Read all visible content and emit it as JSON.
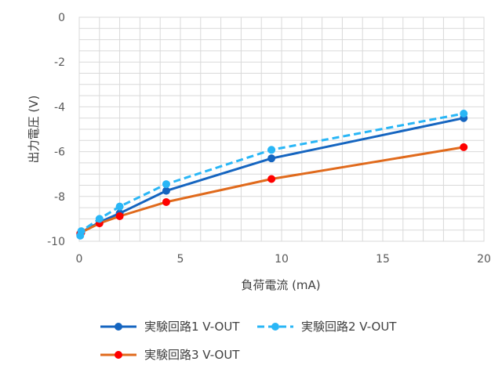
{
  "chart_data": {
    "type": "line",
    "title": "",
    "xlabel": "負荷電流 (mA)",
    "ylabel": "出力電圧 (V)",
    "xlim": [
      0,
      20
    ],
    "ylim": [
      -10,
      0
    ],
    "xticks": [
      0,
      5,
      10,
      15,
      20
    ],
    "yticks": [
      0,
      -2,
      -4,
      -6,
      -8,
      -10
    ],
    "grid": true,
    "legend_position": "bottom",
    "series": [
      {
        "name": "実験回路1 V-OUT",
        "color": "#1565c0",
        "dash": "solid",
        "points": [
          [
            0.05,
            -9.7
          ],
          [
            0.1,
            -9.6
          ],
          [
            1.0,
            -9.15
          ],
          [
            2.0,
            -8.75
          ],
          [
            4.3,
            -7.75
          ],
          [
            9.5,
            -6.3
          ],
          [
            19.0,
            -4.5
          ]
        ]
      },
      {
        "name": "実験回路2 V-OUT",
        "color": "#29b6f6",
        "dash": "dashed",
        "points": [
          [
            0.05,
            -9.75
          ],
          [
            0.1,
            -9.55
          ],
          [
            1.0,
            -9.0
          ],
          [
            2.0,
            -8.45
          ],
          [
            4.3,
            -7.45
          ],
          [
            9.5,
            -5.92
          ],
          [
            19.0,
            -4.3
          ]
        ]
      },
      {
        "name": "実験回路3 V-OUT",
        "color": "#e06a1c",
        "marker_color": "#ff0000",
        "dash": "solid",
        "points": [
          [
            0.05,
            -9.65
          ],
          [
            0.1,
            -9.6
          ],
          [
            1.0,
            -9.2
          ],
          [
            2.0,
            -8.88
          ],
          [
            4.3,
            -8.25
          ],
          [
            9.5,
            -7.22
          ],
          [
            19.0,
            -5.8
          ]
        ]
      }
    ]
  }
}
